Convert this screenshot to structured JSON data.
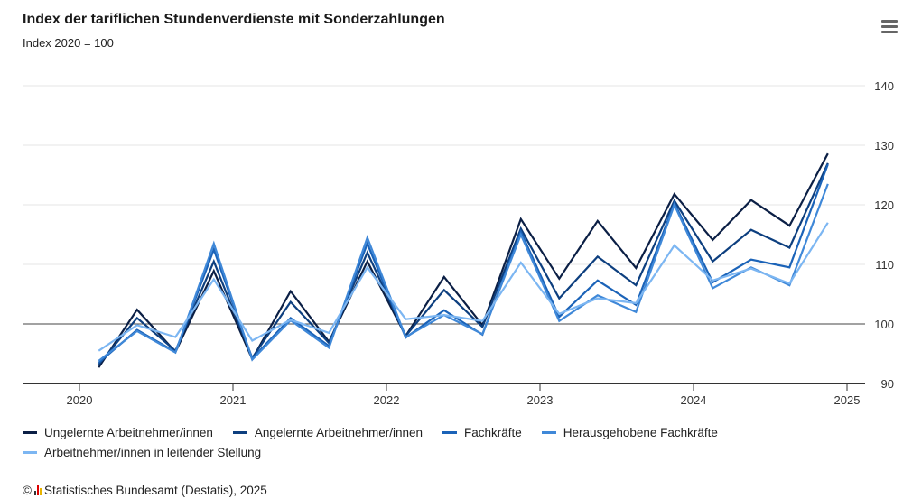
{
  "chart_data": {
    "type": "line",
    "title": "Index der tariflichen Stundenverdienste mit Sonderzahlungen",
    "subtitle": "Index 2020 = 100",
    "xlabel": "",
    "ylabel": "",
    "x": [
      2020.125,
      2020.375,
      2020.625,
      2020.875,
      2021.125,
      2021.375,
      2021.625,
      2021.875,
      2022.125,
      2022.375,
      2022.625,
      2022.875,
      2023.125,
      2023.375,
      2023.625,
      2023.875,
      2024.125,
      2024.375,
      2024.625,
      2024.875
    ],
    "xlim": [
      2019.62,
      2025.12
    ],
    "ylim": [
      90,
      140
    ],
    "x_ticks": [
      "2020",
      "2021",
      "2022",
      "2023",
      "2024",
      "2025"
    ],
    "x_tick_values": [
      2020,
      2021,
      2022,
      2023,
      2024,
      2025
    ],
    "y_ticks": [
      "90",
      "100",
      "110",
      "120",
      "130",
      "140"
    ],
    "y_tick_values": [
      90,
      100,
      110,
      120,
      130,
      140
    ],
    "reference_line": 100,
    "grid": true,
    "legend_position": "bottom-left",
    "series": [
      {
        "name": "Ungelernte Arbeitnehmer/innen",
        "color": "#0b1f45",
        "values": [
          92.7,
          102.4,
          95.3,
          108.9,
          94.1,
          105.5,
          97.0,
          110.5,
          98.0,
          107.9,
          99.8,
          117.6,
          107.6,
          117.3,
          109.4,
          121.8,
          114.1,
          120.8,
          116.5,
          128.6
        ]
      },
      {
        "name": "Angelernte Arbeitnehmer/innen",
        "color": "#0d3f7f",
        "values": [
          93.2,
          101.0,
          95.5,
          110.5,
          94.3,
          103.7,
          96.8,
          112.0,
          98.0,
          105.7,
          99.5,
          116.0,
          104.3,
          111.3,
          106.5,
          120.7,
          110.5,
          115.8,
          112.8,
          127.0
        ]
      },
      {
        "name": "Fachkräfte",
        "color": "#1b63b8",
        "values": [
          93.5,
          99.0,
          95.3,
          112.5,
          94.2,
          101.0,
          96.3,
          113.5,
          97.7,
          102.3,
          98.2,
          115.5,
          101.2,
          107.3,
          103.2,
          120.3,
          107.0,
          110.8,
          109.5,
          126.8
        ]
      },
      {
        "name": "Herausgehobene Fachkräfte",
        "color": "#3f88d8",
        "values": [
          93.8,
          98.8,
          95.2,
          113.5,
          94.0,
          100.6,
          96.0,
          114.5,
          97.8,
          101.5,
          98.3,
          115.0,
          100.5,
          104.8,
          102.0,
          120.0,
          106.0,
          109.5,
          106.5,
          123.5
        ]
      },
      {
        "name": "Arbeitnehmer/innen in leitender Stellung",
        "color": "#7cb6f2",
        "values": [
          95.5,
          99.8,
          97.8,
          107.5,
          97.2,
          100.7,
          98.5,
          109.5,
          100.8,
          101.5,
          100.5,
          110.3,
          101.7,
          104.3,
          103.5,
          113.2,
          107.3,
          109.3,
          106.8,
          117.0
        ]
      }
    ]
  },
  "footer": {
    "source": "Statistisches Bundesamt (Destatis), 2025",
    "copyright": "©"
  }
}
